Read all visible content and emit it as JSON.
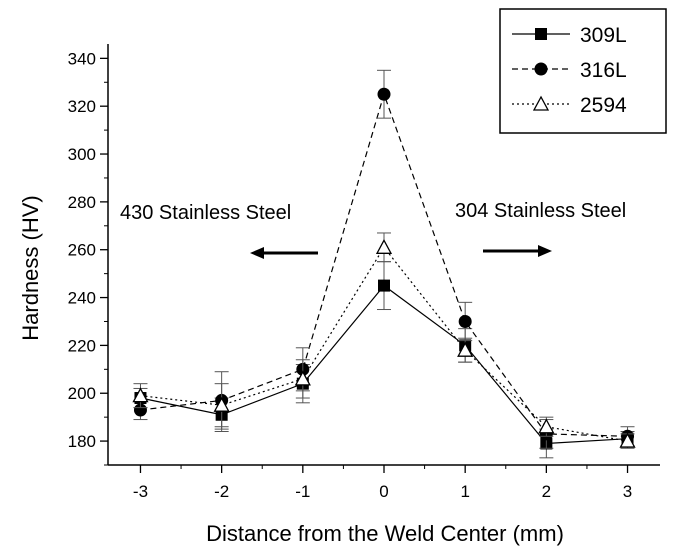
{
  "chart_data": {
    "type": "line",
    "xlabel": "Distance from the Weld Center (mm)",
    "ylabel": "Hardness (HV)",
    "x": [
      -3,
      -2,
      -1,
      0,
      1,
      2,
      3
    ],
    "xlim": [
      -3.4,
      3.4
    ],
    "ylim": [
      170,
      346
    ],
    "xticks": [
      -3,
      -2,
      -1,
      0,
      1,
      2,
      3
    ],
    "yticks": [
      180,
      200,
      220,
      240,
      260,
      280,
      300,
      320,
      340
    ],
    "series": [
      {
        "name": "309L",
        "marker": "filled-square",
        "line": "solid",
        "values": [
          198,
          191,
          204,
          245,
          220,
          179,
          181
        ],
        "errors": [
          4,
          7,
          8,
          10,
          7,
          6,
          3
        ]
      },
      {
        "name": "316L",
        "marker": "filled-circle",
        "line": "dashed",
        "values": [
          193,
          197,
          210,
          325,
          230,
          183,
          182
        ],
        "errors": [
          4,
          12,
          9,
          10,
          8,
          6,
          4
        ]
      },
      {
        "name": "2594",
        "marker": "open-triangle",
        "line": "dotted",
        "values": [
          199,
          195,
          206,
          261,
          218,
          186,
          180
        ],
        "errors": [
          5,
          9,
          8,
          6,
          5,
          4,
          3
        ]
      }
    ],
    "annotations": [
      {
        "text": "430 Stainless Steel",
        "arrow": "left"
      },
      {
        "text": "304 Stainless Steel",
        "arrow": "right"
      }
    ],
    "legend": "top-right",
    "grid": false
  }
}
